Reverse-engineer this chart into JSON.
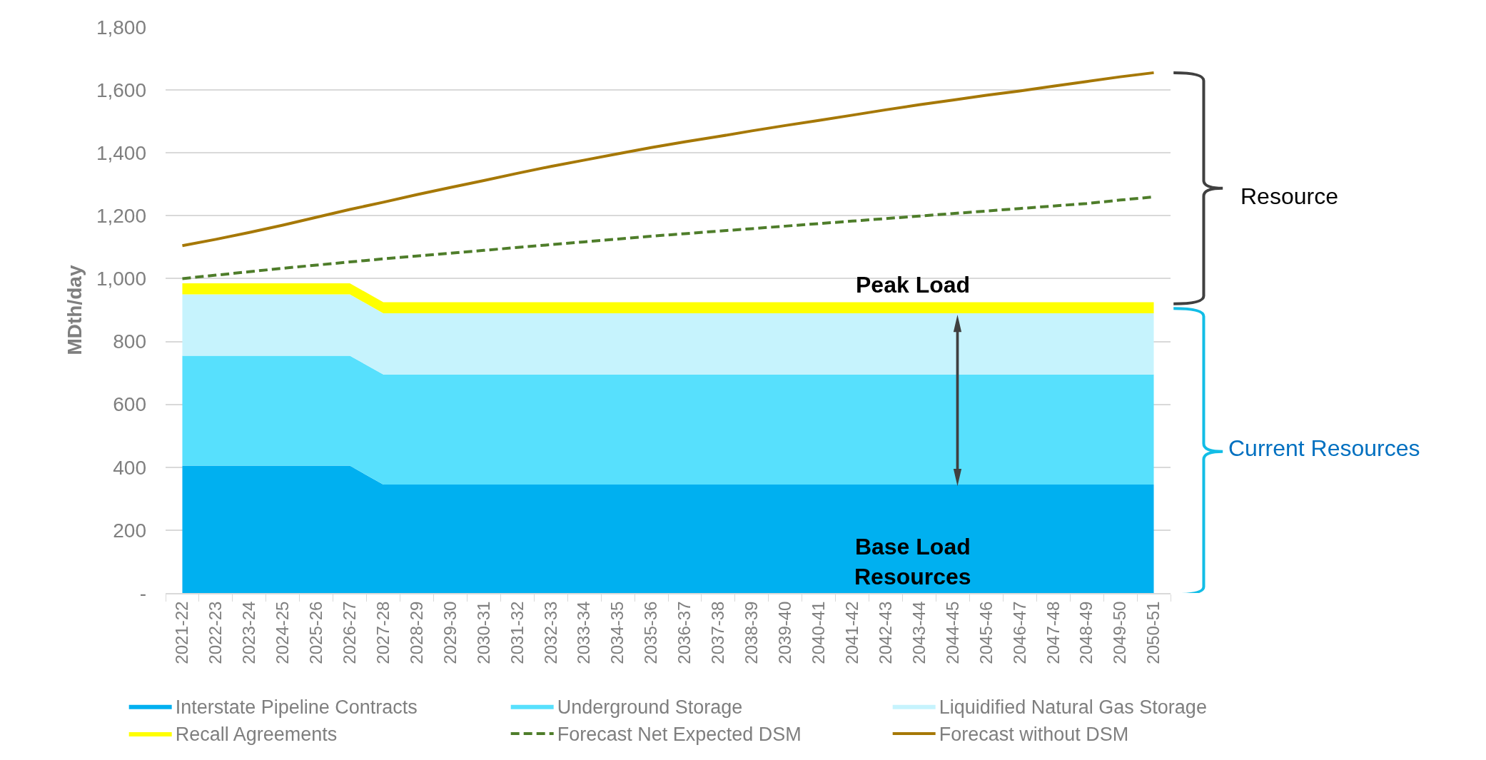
{
  "chart_data": {
    "type": "area",
    "stacked": true,
    "ylabel": "MDth/day",
    "categories": [
      "2021-22",
      "2022-23",
      "2023-24",
      "2024-25",
      "2025-26",
      "2026-27",
      "2027-28",
      "2028-29",
      "2029-30",
      "2030-31",
      "2031-32",
      "2032-33",
      "2033-34",
      "2034-35",
      "2035-36",
      "2036-37",
      "2037-38",
      "2038-39",
      "2039-40",
      "2040-41",
      "2041-42",
      "2042-43",
      "2043-44",
      "2044-45",
      "2045-46",
      "2046-47",
      "2047-48",
      "2048-49",
      "2049-50",
      "2050-51"
    ],
    "series": [
      {
        "name": "Interstate Pipeline Contracts",
        "color": "#00b0f0",
        "values": [
          405,
          405,
          405,
          405,
          405,
          405,
          345,
          345,
          345,
          345,
          345,
          345,
          345,
          345,
          345,
          345,
          345,
          345,
          345,
          345,
          345,
          345,
          345,
          345,
          345,
          345,
          345,
          345,
          345,
          345
        ]
      },
      {
        "name": "Underground Storage",
        "color": "#57e0fd",
        "values": [
          350,
          350,
          350,
          350,
          350,
          350,
          350,
          350,
          350,
          350,
          350,
          350,
          350,
          350,
          350,
          350,
          350,
          350,
          350,
          350,
          350,
          350,
          350,
          350,
          350,
          350,
          350,
          350,
          350,
          350
        ]
      },
      {
        "name": "Liquidified Natural Gas Storage",
        "color": "#c6f3fd",
        "values": [
          195,
          195,
          195,
          195,
          195,
          195,
          195,
          195,
          195,
          195,
          195,
          195,
          195,
          195,
          195,
          195,
          195,
          195,
          195,
          195,
          195,
          195,
          195,
          195,
          195,
          195,
          195,
          195,
          195,
          195
        ]
      },
      {
        "name": "Recall Agreements",
        "color": "#ffff00",
        "values": [
          35,
          35,
          35,
          35,
          35,
          35,
          35,
          35,
          35,
          35,
          35,
          35,
          35,
          35,
          35,
          35,
          35,
          35,
          35,
          35,
          35,
          35,
          35,
          35,
          35,
          35,
          35,
          35,
          35,
          35
        ]
      },
      {
        "name": "Forecast Net Expected DSM",
        "type": "line",
        "line_style": "dashed",
        "color": "#4e7d2a",
        "values": [
          1000,
          1011,
          1022,
          1033,
          1043,
          1053,
          1063,
          1072,
          1081,
          1090,
          1099,
          1108,
          1117,
          1126,
          1135,
          1143,
          1151,
          1159,
          1167,
          1175,
          1183,
          1191,
          1199,
          1207,
          1215,
          1223,
          1231,
          1239,
          1250,
          1260
        ]
      },
      {
        "name": "Forecast without DSM",
        "type": "line",
        "line_style": "solid",
        "color": "#a67806",
        "values": [
          1105,
          1125,
          1147,
          1170,
          1195,
          1220,
          1243,
          1267,
          1290,
          1312,
          1335,
          1357,
          1377,
          1397,
          1417,
          1435,
          1452,
          1470,
          1487,
          1503,
          1520,
          1537,
          1553,
          1568,
          1583,
          1597,
          1612,
          1627,
          1642,
          1655
        ]
      }
    ],
    "ylim": [
      0,
      1800
    ],
    "yticks": [
      {
        "value": 0,
        "label": "-"
      },
      200,
      400,
      600,
      800,
      {
        "value": 1000,
        "label": "1,000"
      },
      {
        "value": 1200,
        "label": "1,200"
      },
      {
        "value": 1400,
        "label": "1,400"
      },
      {
        "value": 1600,
        "label": "1,600"
      },
      {
        "value": 1800,
        "label": "1,800"
      }
    ],
    "grid": "y",
    "legend": "bottom",
    "marker": "none",
    "annotations": [
      "Peak Load",
      "Base Load\nResources",
      "Resource",
      "Current Resources"
    ]
  }
}
